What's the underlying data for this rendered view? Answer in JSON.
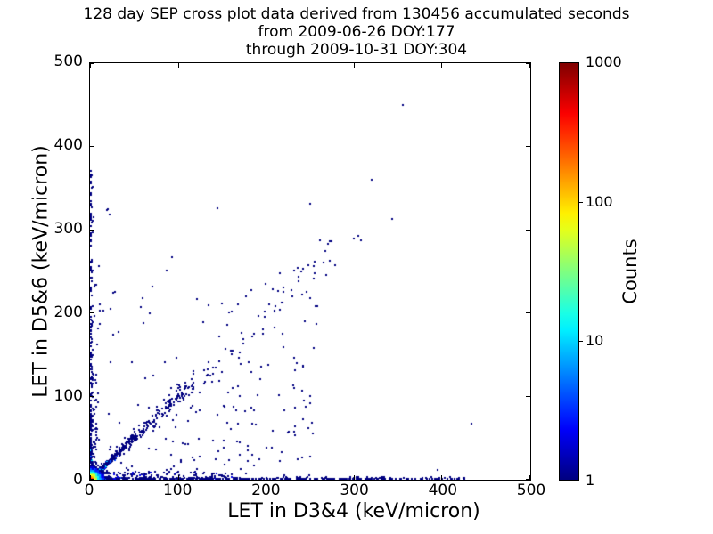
{
  "figure": {
    "background": "#ffffff",
    "title_lines": [
      "128 day SEP cross plot data derived from 130456 accumulated seconds",
      "from 2009-06-26 DOY:177",
      "through 2009-10-31 DOY:304"
    ]
  },
  "chart_data": {
    "type": "scatter",
    "subtype": "2d-histogram-cross-plot",
    "title": "128 day SEP cross plot data derived from 130456 accumulated seconds from 2009-06-26 DOY:177 through 2009-10-31 DOY:304",
    "xlabel": "LET in D3&4 (keV/micron)",
    "ylabel": "LET in D5&6 (keV/micron)",
    "xlim": [
      0,
      500
    ],
    "ylim": [
      0,
      500
    ],
    "xticks": [
      0,
      100,
      200,
      300,
      400,
      500
    ],
    "yticks": [
      0,
      100,
      200,
      300,
      400,
      500
    ],
    "grid": false,
    "frame_color": "#000000",
    "single_count_color": "#000080",
    "colorbar": {
      "label": "Counts",
      "colormap": "jet",
      "scale": "log",
      "domain": [
        1,
        1000
      ],
      "ticks": [
        1,
        10,
        100,
        1000
      ],
      "position": "right"
    },
    "distribution": {
      "comment": "procedural description of the 2D histogram content; counts map to jet colormap on log scale 1-1000",
      "origin_hotspot": {
        "amplitude": 150,
        "scale": 3.0,
        "bin": 2,
        "extent": 40,
        "noise": 0.55,
        "seed": 7
      },
      "diagonal_band": {
        "n": 420,
        "x_min": 2,
        "x_max": 118,
        "x_pow": 2.2,
        "spread_base": 1.5,
        "spread_grow": 0.085,
        "bright_limit": 35,
        "seed": 11
      },
      "diagonal_sparse": {
        "n": 55,
        "x_min": 110,
        "x_max": 285,
        "spread": 13,
        "seed": 13
      },
      "bottom_band": {
        "n": 520,
        "x_max": 425,
        "x_pow": 2.4,
        "y_scale": 3.2,
        "bright_limit": 40,
        "seed": 17
      },
      "bottom_fluff": {
        "n": 130,
        "x_max": 165,
        "x_pow": 1.8,
        "y_scale": 9,
        "seed": 19
      },
      "left_band": {
        "n": 240,
        "y_max": 372,
        "y_pow": 2.6,
        "x_scale": 3.0,
        "bright_limit": 40,
        "seed": 23
      },
      "left_fluff": {
        "n": 60,
        "y_max": 150,
        "y_pow": 1.5,
        "x_scale": 7,
        "seed": 29
      },
      "fan_scatter": {
        "n": 240,
        "extent": 258,
        "pow": 1.5,
        "above_diag_prob": 0.35,
        "seed": 31
      }
    },
    "outlier_points": [
      [
        355,
        450
      ],
      [
        320,
        360
      ],
      [
        343,
        313
      ],
      [
        305,
        293
      ],
      [
        300,
        290
      ],
      [
        308,
        287
      ],
      [
        274,
        286
      ],
      [
        272,
        263
      ],
      [
        250,
        331
      ],
      [
        145,
        326
      ],
      [
        93,
        267
      ],
      [
        20,
        325
      ],
      [
        22,
        318
      ],
      [
        4,
        315
      ],
      [
        19,
        324
      ],
      [
        433,
        67
      ],
      [
        395,
        12
      ],
      [
        258,
        208
      ],
      [
        230,
        220
      ],
      [
        218,
        213
      ],
      [
        177,
        220
      ],
      [
        210,
        202
      ],
      [
        256,
        208
      ],
      [
        219,
        213
      ]
    ]
  }
}
